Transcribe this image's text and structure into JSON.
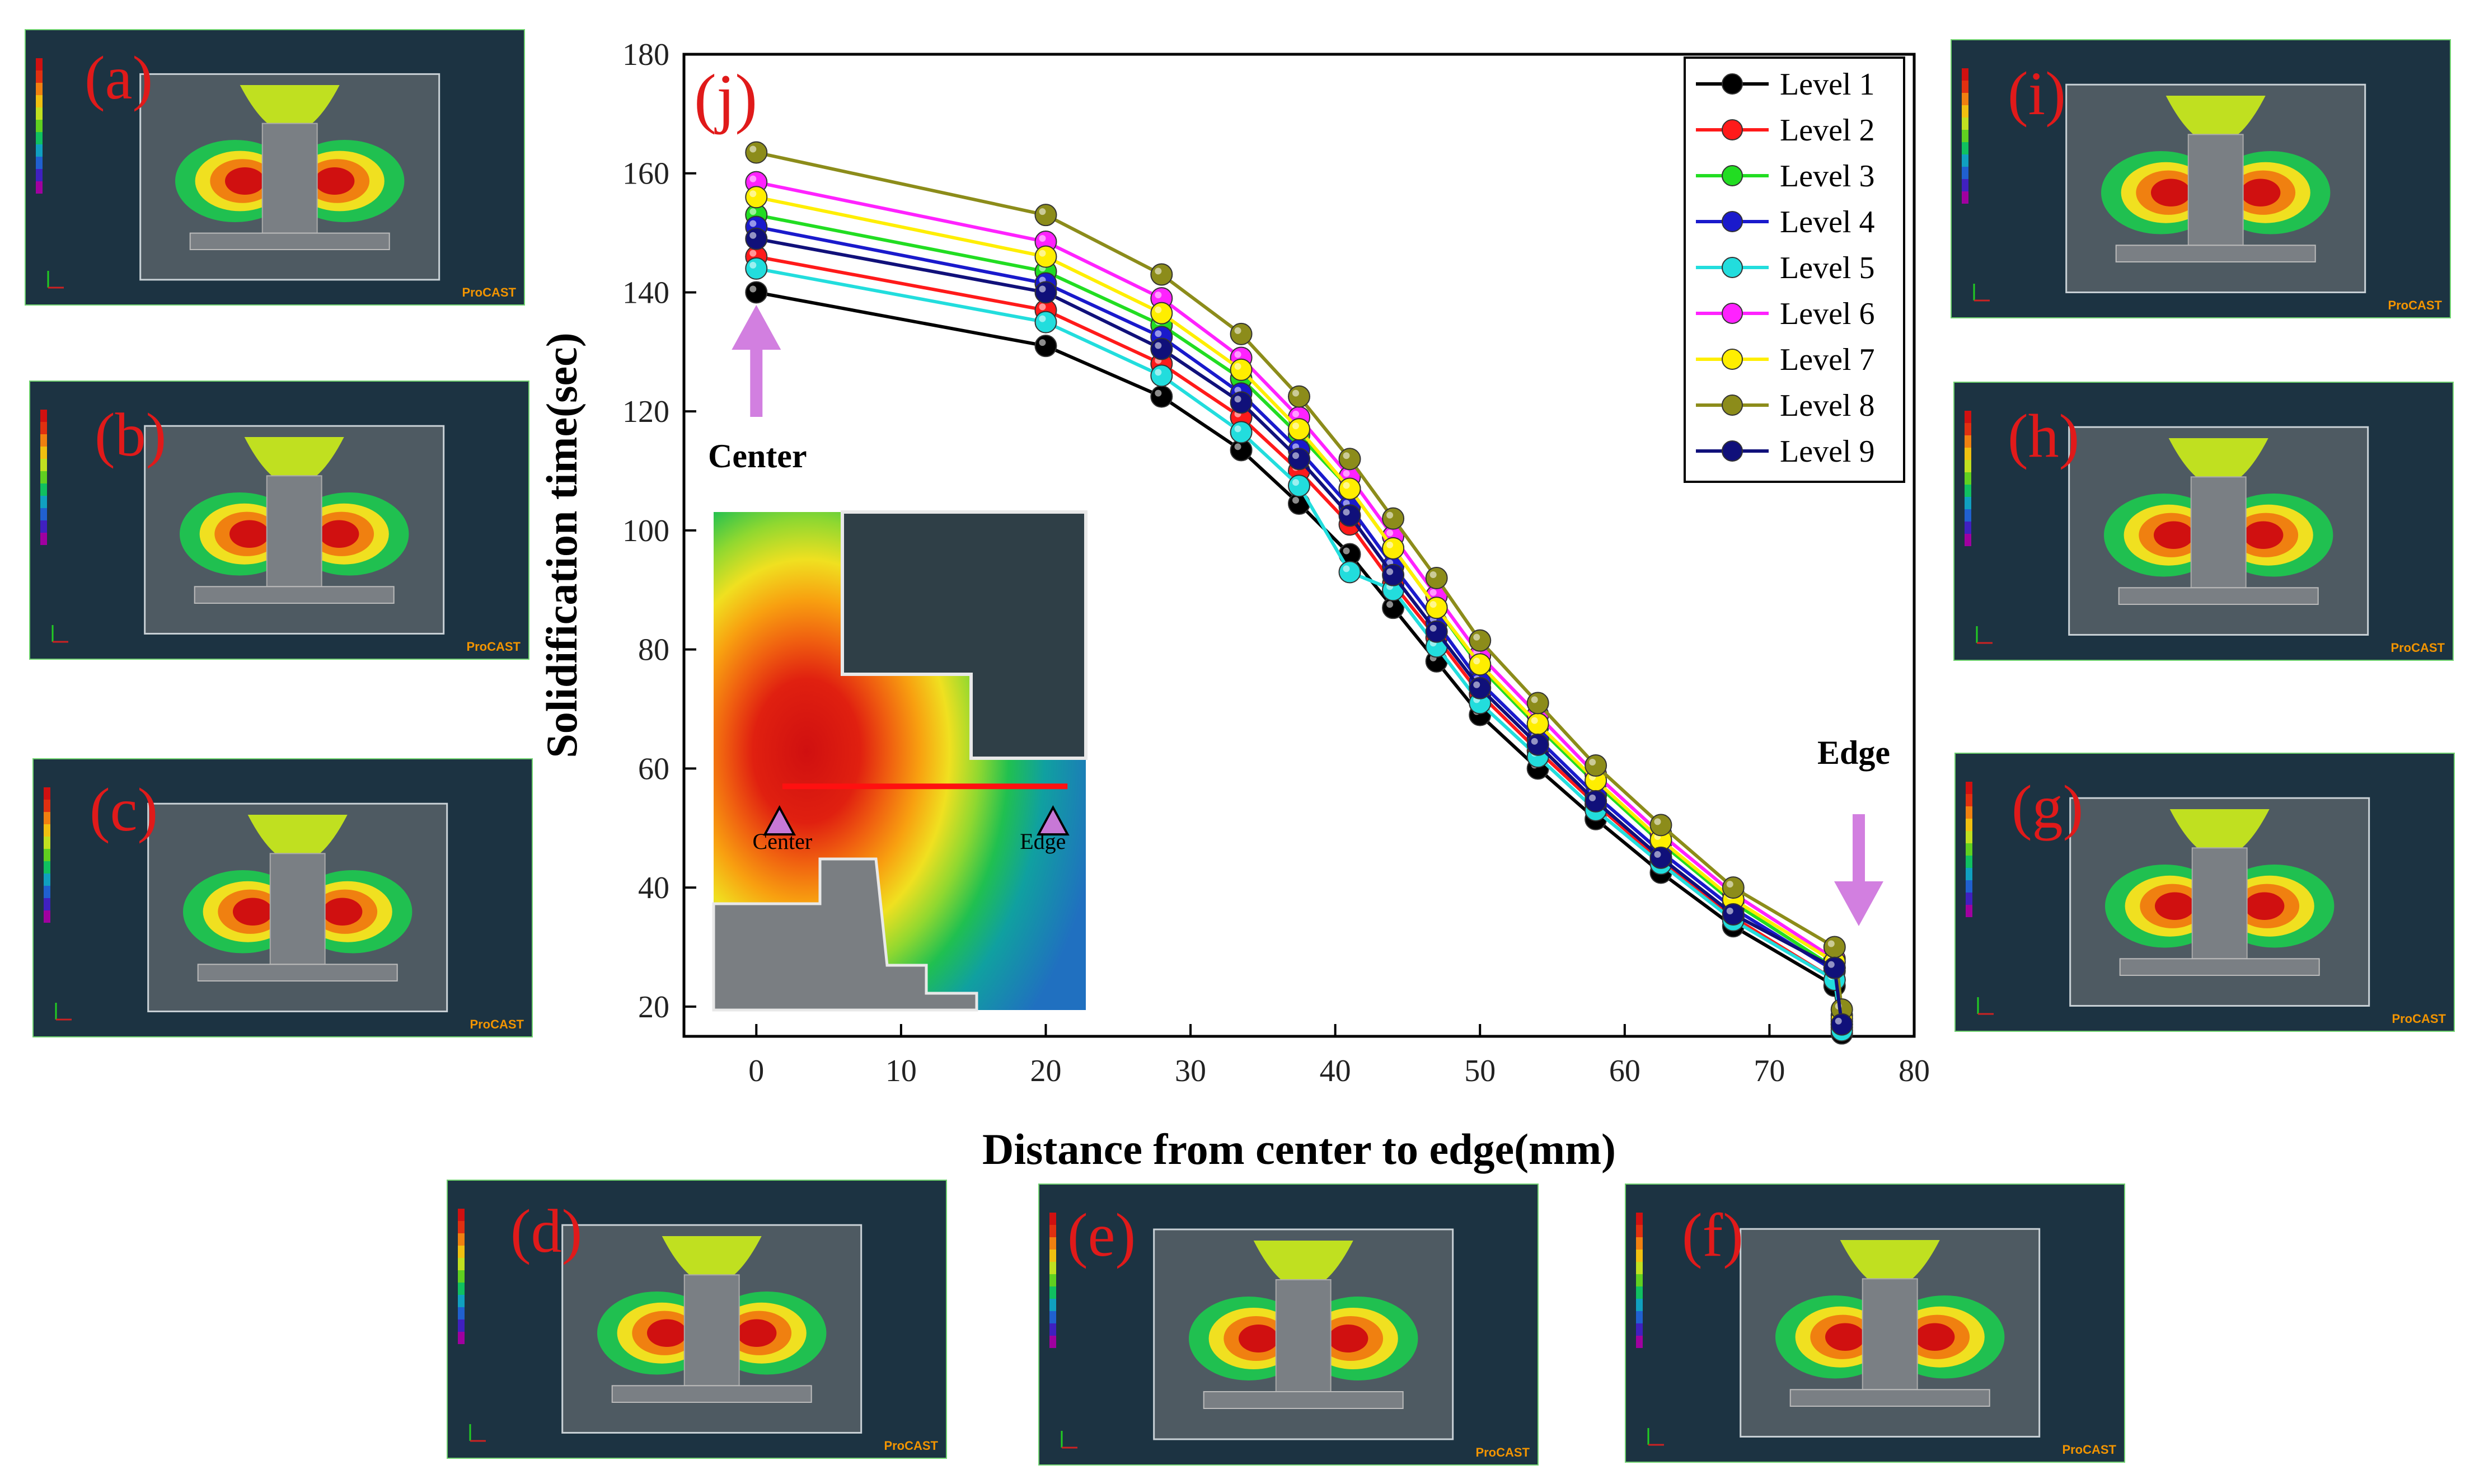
{
  "panels": [
    {
      "id": "a",
      "label": "(a)",
      "brand": "ProCAST",
      "box": "a"
    },
    {
      "id": "b",
      "label": "(b)",
      "brand": "ProCAST",
      "box": "b"
    },
    {
      "id": "c",
      "label": "(c)",
      "brand": "ProCAST",
      "box": "c"
    },
    {
      "id": "d",
      "label": "(d)",
      "brand": "ProCAST",
      "box": "d"
    },
    {
      "id": "e",
      "label": "(e)",
      "brand": "ProCAST",
      "box": "e"
    },
    {
      "id": "f",
      "label": "(f)",
      "brand": "ProCAST",
      "box": "f"
    },
    {
      "id": "g",
      "label": "(g)",
      "brand": "ProCAST",
      "box": "g"
    },
    {
      "id": "h",
      "label": "(h)",
      "brand": "ProCAST",
      "box": "h"
    },
    {
      "id": "i",
      "label": "(i)",
      "brand": "ProCAST",
      "box": "i"
    }
  ],
  "chart_data": {
    "type": "line",
    "panel_label": "(j)",
    "xlabel": "Distance from center to edge(mm)",
    "ylabel": "Solidification time(sec)",
    "xlim": [
      -5,
      80
    ],
    "ylim": [
      15,
      180
    ],
    "xticks": [
      0,
      10,
      20,
      30,
      40,
      50,
      60,
      70,
      80
    ],
    "yticks": [
      20,
      40,
      60,
      80,
      100,
      120,
      140,
      160,
      180
    ],
    "grid": false,
    "legend_position": "top-right",
    "x": [
      0,
      20,
      28,
      33.5,
      37.5,
      41,
      44,
      47,
      50,
      54,
      58,
      62.5,
      67.5,
      74.5,
      75
    ],
    "series": [
      {
        "name": "Level 1",
        "color": "#000000",
        "values": [
          140,
          131,
          122.5,
          113.5,
          104.5,
          96,
          87,
          78,
          69,
          60,
          51.5,
          42.5,
          33.5,
          23.5,
          15.5
        ]
      },
      {
        "name": "Level 2",
        "color": "#ff1a1a",
        "values": [
          146,
          137,
          128,
          119,
          110,
          101,
          91,
          82,
          72.5,
          63,
          54,
          44.5,
          35,
          24.5,
          16.5
        ]
      },
      {
        "name": "Level 3",
        "color": "#22dd22",
        "values": [
          153,
          143.5,
          134.5,
          125.5,
          116,
          107,
          97,
          87,
          77,
          67,
          57.5,
          47.5,
          37.5,
          26.5,
          17.5
        ]
      },
      {
        "name": "Level 4",
        "color": "#1a1acc",
        "values": [
          151,
          141.5,
          132.5,
          123,
          113.5,
          104,
          94,
          84.5,
          74.5,
          65,
          55.5,
          46,
          36.5,
          26,
          17
        ]
      },
      {
        "name": "Level 5",
        "color": "#22dddd",
        "values": [
          144,
          135,
          126,
          116.5,
          107.5,
          93,
          90,
          80.5,
          71,
          62,
          53,
          44,
          34.5,
          24.5,
          16
        ]
      },
      {
        "name": "Level 6",
        "color": "#ff22ff",
        "values": [
          158.5,
          148.5,
          139,
          129,
          119,
          109,
          99,
          89,
          79,
          69,
          59,
          49,
          39,
          28,
          18.5
        ]
      },
      {
        "name": "Level 7",
        "color": "#ffee00",
        "values": [
          156,
          146,
          136.5,
          127,
          117,
          107,
          97,
          87,
          77.5,
          67.5,
          58,
          48,
          38,
          27.5,
          18
        ]
      },
      {
        "name": "Level 8",
        "color": "#8c8c1a",
        "values": [
          163.5,
          153,
          143,
          133,
          122.5,
          112,
          102,
          92,
          81.5,
          71,
          60.5,
          50.5,
          40,
          30,
          19.5
        ]
      },
      {
        "name": "Level 9",
        "color": "#10107a",
        "values": [
          149,
          140,
          130.5,
          121.5,
          112,
          102.5,
          92.5,
          83,
          73.5,
          64,
          54.5,
          45,
          35.5,
          26.5,
          17
        ]
      }
    ],
    "annotations": {
      "center_label": "Center",
      "edge_label": "Edge",
      "inset_center_label": "Center",
      "inset_edge_label": "Edge",
      "arrow_color": "#d27fe0"
    }
  }
}
